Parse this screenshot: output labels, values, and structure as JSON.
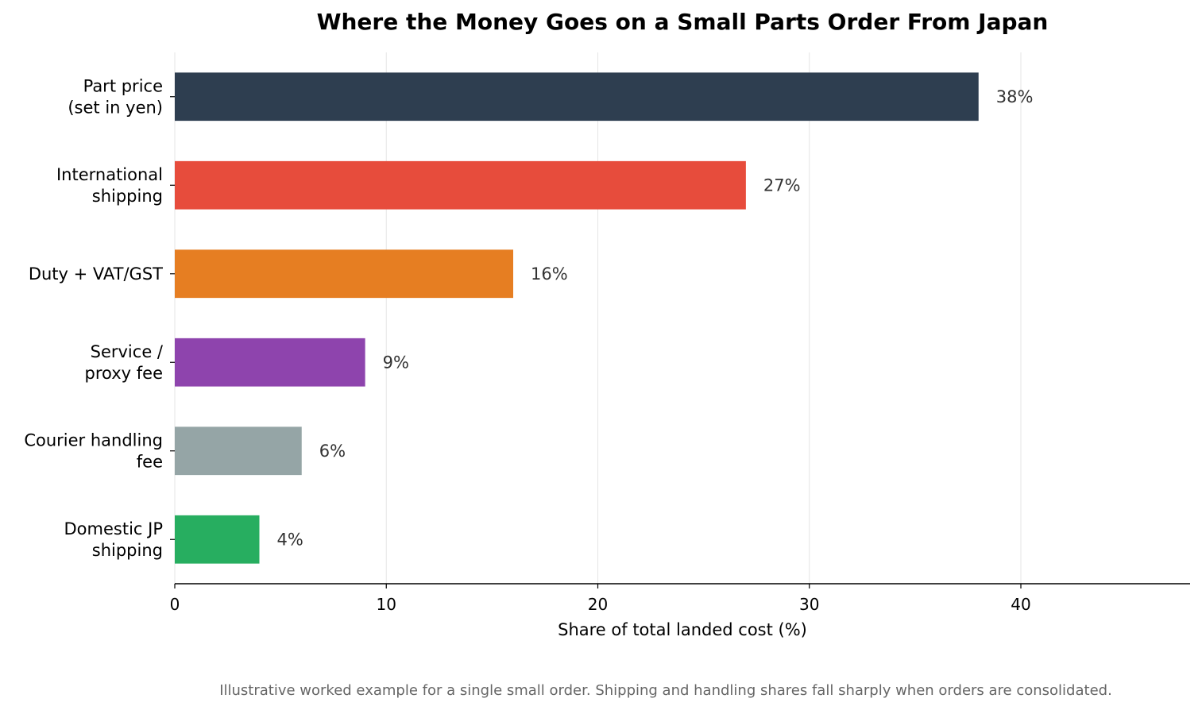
{
  "chart_data": {
    "type": "bar",
    "orientation": "horizontal",
    "title": "Where the Money Goes on a Small Parts Order From Japan",
    "xlabel": "Share of total landed cost (%)",
    "ylabel": "",
    "xlim": [
      0,
      48
    ],
    "xticks": [
      0,
      10,
      20,
      30,
      40
    ],
    "grid": "vertical",
    "categories": [
      [
        "Part price",
        "(set in yen)"
      ],
      [
        "International",
        "shipping"
      ],
      [
        "Duty + VAT/GST"
      ],
      [
        "Service /",
        "proxy fee"
      ],
      [
        "Courier handling",
        "fee"
      ],
      [
        "Domestic JP",
        "shipping"
      ]
    ],
    "values": [
      38,
      27,
      16,
      9,
      6,
      4
    ],
    "value_labels": [
      "38%",
      "27%",
      "16%",
      "9%",
      "6%",
      "4%"
    ],
    "colors": [
      "#2e3e50",
      "#e74c3c",
      "#e67e22",
      "#8e44ad",
      "#95a5a6",
      "#27ae60"
    ],
    "footnote": "Illustrative worked example for a single small order. Shipping and handling shares fall sharply when orders are consolidated."
  }
}
